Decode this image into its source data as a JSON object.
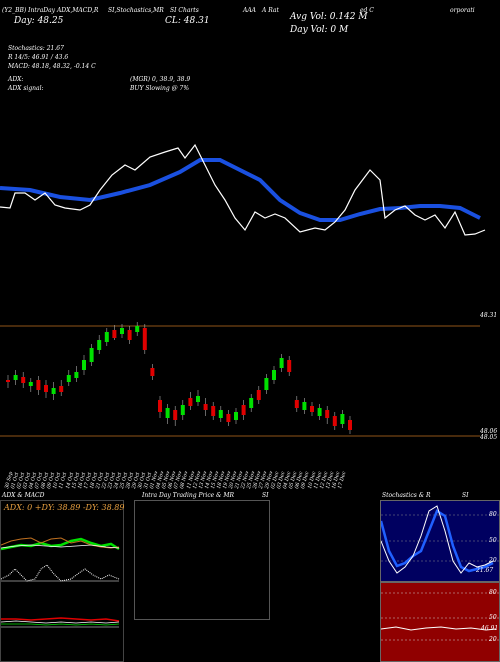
{
  "header": {
    "line1_left": "(Y2_BB) IntraDay ADX,MACD,R",
    "line1_mid": "SI,Stochastics,MR",
    "line1_mid2": "SI Charts",
    "line1_symbol": "AAA",
    "line1_right": "A Rat",
    "line1_tail": "ed C",
    "line1_far": "orporati",
    "day_label": "Day:",
    "day_value": "48.25",
    "cl_label": "CL:",
    "cl_value": "48.31",
    "avg_vol": "Avg Vol: 0.142 M",
    "day_vol": "Day Vol: 0 M",
    "stoch_label": "Stochastics: 21.67",
    "r_line": "R 14/5: 46.91 / 43.6",
    "macd_line": "MACD: 48.18, 48.32, -0.14 C",
    "adx_line": "ADX:",
    "adx_mid": "(MGR) 0, 38.9, 38.9",
    "adx_signal": "ADX signal:",
    "buy_signal": "BUY Slowing @ 7%"
  },
  "price_axis": {
    "top_label": "48.31",
    "bottom_label1": "48.06",
    "bottom_label2": "48.05"
  },
  "x_dates": [
    "30 Sep",
    "01 Oct",
    "02 Oct",
    "03 Oct",
    "04 Oct",
    "07 Oct",
    "08 Oct",
    "09 Oct",
    "10 Oct",
    "11 Oct",
    "14 Oct",
    "15 Oct",
    "16 Oct",
    "17 Oct",
    "18 Oct",
    "21 Oct",
    "22 Oct",
    "23 Oct",
    "24 Oct",
    "25 Oct",
    "28 Oct",
    "29 Oct",
    "30 Oct",
    "31 Oct",
    "01 Nov",
    "04 Nov",
    "05 Nov",
    "06 Nov",
    "07 Nov",
    "08 Nov",
    "11 Nov",
    "12 Nov",
    "13 Nov",
    "14 Nov",
    "15 Nov",
    "18 Nov",
    "19 Nov",
    "20 Nov",
    "21 Nov",
    "22 Nov",
    "25 Nov",
    "26 Nov",
    "27 Nov",
    "29 Nov",
    "02 Dec",
    "03 Dec",
    "04 Dec",
    "05 Dec",
    "06 Dec",
    "09 Dec",
    "10 Dec",
    "11 Dec",
    "12 Dec",
    "13 Dec",
    "16 Dec",
    "17 Dec"
  ],
  "panels": {
    "adx_title": "ADX  & MACD",
    "adx_readout": "ADX: 0  +DY: 38.89  -DY: 38.89",
    "intraday_title": "Intra  Day Trading Price  & MR",
    "intraday_si": "SI",
    "stoch_title": "Stochastics & R",
    "stoch_si": "SI",
    "stoch_ticks": [
      "80",
      "50",
      "20"
    ],
    "rsi_ticks": [
      "80",
      "50",
      "20"
    ],
    "stoch_end_label": "21.67",
    "rsi_end_label": "46.91"
  },
  "colors": {
    "background": "#000000",
    "ma_line": "#1a50e0",
    "up_candle": "#00e000",
    "down_candle": "#e00000",
    "orange_line": "#c07020",
    "stoch_bg": "#000060",
    "rsi_bg": "#900000"
  }
}
